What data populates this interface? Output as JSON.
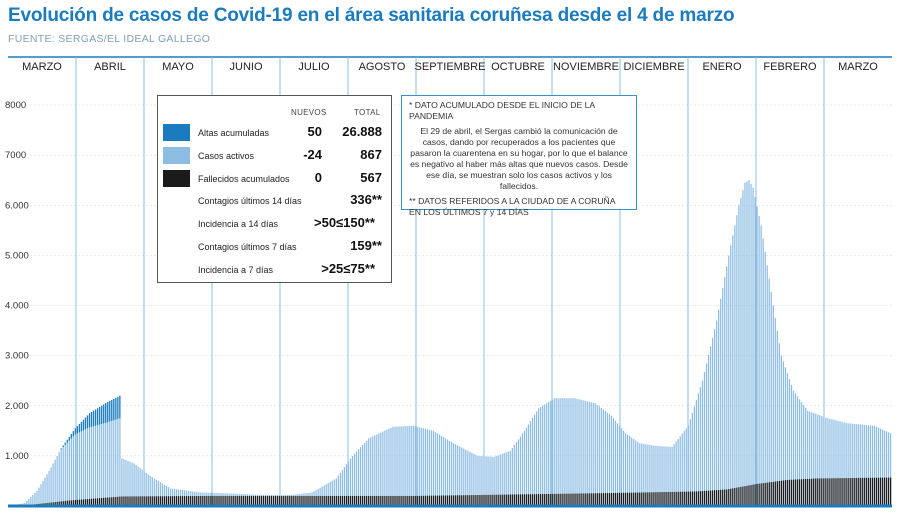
{
  "header": {
    "title": "Evolución de casos de Covid-19 en el área sanitaria coruñesa desde el 4 de marzo",
    "source": "FUENTE: SERGAS/EL IDEAL GALLEGO"
  },
  "legend": {
    "col_new": "NUEVOS",
    "col_total": "TOTAL",
    "rows": [
      {
        "label": "Altas acumuladas",
        "new": "50",
        "total": "26.888",
        "color": "#1a7bbf"
      },
      {
        "label": "Casos activos",
        "new": "-24",
        "total": "867",
        "color": "#8ebde3"
      },
      {
        "label": "Fallecidos acumulados",
        "new": "0",
        "total": "567",
        "color": "#1b1b1b"
      }
    ],
    "stats": [
      {
        "label": "Contagios últimos 14 días",
        "value": "336**"
      },
      {
        "label": "Incidencia a 14 días",
        "value": ">50≤150**"
      },
      {
        "label": "Contagios últimos 7 días",
        "value": "159**"
      },
      {
        "label": "Incidencia a 7 días",
        "value": ">25≤75**"
      }
    ]
  },
  "notes": {
    "note1": "* DATO ACUMULADO DESDE EL INICIO DE LA PANDEMIA",
    "note2": "El 29 de abril, el Sergas cambió la comunicación de casos, dando por recuperados a los pacientes que pasaron la cuarentena en su hogar, por lo que el balance es negativo al haber más altas que nuevos casos. Desde ese día, se muestran solo los casos activos y los fallecidos.",
    "note3": "** DATOS REFERIDOS A LA CIUDAD DE A CORUÑA EN LOS ÚLTIMOS 7 y 14 DÍAS"
  },
  "chart_data": {
    "type": "bar",
    "stacked": true,
    "months": [
      "MARZO",
      "ABRIL",
      "MAYO",
      "JUNIO",
      "JULIO",
      "AGOSTO",
      "SEPTIEMBRE",
      "OCTUBRE",
      "NOVIEMBRE",
      "DICIEMBRE",
      "ENERO",
      "FEBRERO",
      "MARZO"
    ],
    "y_ticks": [
      "8000",
      "7000",
      "6.000",
      "5.000",
      "4.000",
      "3.000",
      "2.000",
      "1.000"
    ],
    "ylim": [
      0,
      8000
    ],
    "grid": true,
    "colors": {
      "altas": "#1a7bbf",
      "activos": "#8ebde3",
      "fallecidos": "#1b1b1b",
      "month_line": "#8ebde3",
      "axis": "#1a7bbf"
    },
    "series_keyframes": {
      "total_height_by_day": [
        [
          0,
          0
        ],
        [
          8,
          60
        ],
        [
          14,
          300
        ],
        [
          20,
          700
        ],
        [
          26,
          1150
        ],
        [
          33,
          1550
        ],
        [
          40,
          1850
        ],
        [
          48,
          2050
        ],
        [
          55,
          2200
        ],
        [
          56,
          950
        ],
        [
          62,
          850
        ],
        [
          70,
          600
        ],
        [
          80,
          350
        ],
        [
          95,
          270
        ],
        [
          110,
          250
        ],
        [
          125,
          220
        ],
        [
          140,
          220
        ],
        [
          150,
          270
        ],
        [
          162,
          550
        ],
        [
          170,
          1000
        ],
        [
          178,
          1350
        ],
        [
          190,
          1580
        ],
        [
          200,
          1600
        ],
        [
          210,
          1500
        ],
        [
          220,
          1250
        ],
        [
          232,
          1000
        ],
        [
          240,
          980
        ],
        [
          248,
          1100
        ],
        [
          255,
          1500
        ],
        [
          262,
          1950
        ],
        [
          270,
          2150
        ],
        [
          280,
          2150
        ],
        [
          290,
          2050
        ],
        [
          298,
          1800
        ],
        [
          305,
          1450
        ],
        [
          312,
          1250
        ],
        [
          320,
          1200
        ],
        [
          328,
          1180
        ],
        [
          336,
          1600
        ],
        [
          343,
          2500
        ],
        [
          350,
          3700
        ],
        [
          356,
          5000
        ],
        [
          361,
          6000
        ],
        [
          364,
          6450
        ],
        [
          366,
          6500
        ],
        [
          368,
          6350
        ],
        [
          372,
          5600
        ],
        [
          378,
          4000
        ],
        [
          382,
          3000
        ],
        [
          388,
          2300
        ],
        [
          395,
          1900
        ],
        [
          405,
          1750
        ],
        [
          415,
          1650
        ],
        [
          428,
          1600
        ],
        [
          436,
          1450
        ]
      ],
      "fallecidos_by_day": [
        [
          0,
          0
        ],
        [
          10,
          20
        ],
        [
          30,
          110
        ],
        [
          56,
          190
        ],
        [
          100,
          200
        ],
        [
          200,
          200
        ],
        [
          300,
          260
        ],
        [
          340,
          290
        ],
        [
          355,
          330
        ],
        [
          370,
          440
        ],
        [
          385,
          520
        ],
        [
          400,
          550
        ],
        [
          436,
          567
        ]
      ],
      "altas_by_day_until_55": [
        [
          0,
          0
        ],
        [
          25,
          0
        ],
        [
          33,
          120
        ],
        [
          40,
          280
        ],
        [
          48,
          390
        ],
        [
          55,
          450
        ]
      ]
    }
  }
}
